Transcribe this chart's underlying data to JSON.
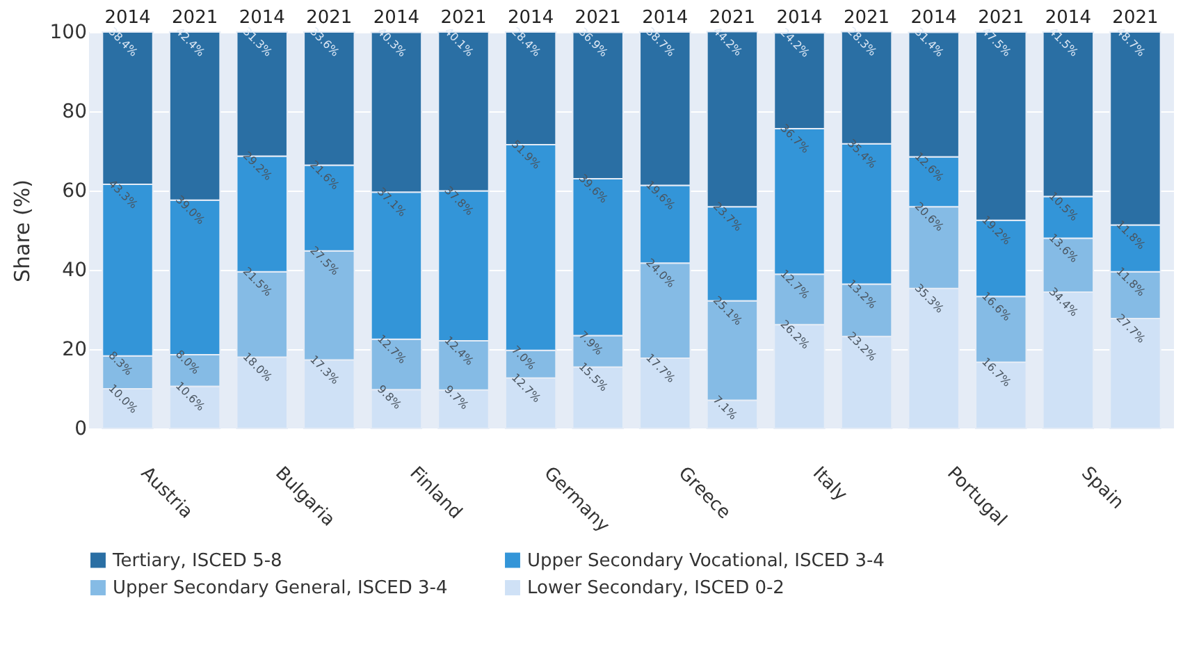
{
  "chart_data": {
    "type": "bar",
    "stacked": true,
    "ylabel": "Share (%)",
    "categories": [
      "2014",
      "2021",
      "2014",
      "2021",
      "2014",
      "2021",
      "2014",
      "2021",
      "2014",
      "2021",
      "2014",
      "2021",
      "2014",
      "2021",
      "2014",
      "2021"
    ],
    "annotations": [
      "Austria",
      "Bulgaria",
      "Finland",
      "Germany",
      "Greece",
      "Italy",
      "Portugal",
      "Spain"
    ],
    "series": [
      {
        "name": "Lower Secondary, ISCED 0-2",
        "color": "#cfe1f6",
        "values": [
          10.0,
          10.6,
          18.0,
          17.3,
          9.8,
          9.7,
          12.7,
          15.5,
          17.7,
          7.1,
          26.2,
          23.2,
          35.3,
          16.7,
          34.4,
          27.7
        ],
        "value_labels": [
          "10.0%",
          "10.6%",
          "18.0%",
          "17.3%",
          "9.8%",
          "9.7%",
          "12.7%",
          "15.5%",
          "17.7%",
          "7.1%",
          "26.2%",
          "23.2%",
          "35.3%",
          "16.7%",
          "34.4%",
          "27.7%"
        ]
      },
      {
        "name": "Upper Secondary General, ISCED 3-4",
        "color": "#85bbe5",
        "values": [
          8.3,
          8.0,
          21.5,
          27.5,
          12.7,
          12.4,
          7.0,
          7.9,
          24.0,
          25.1,
          12.7,
          13.2,
          20.6,
          16.6,
          13.6,
          11.8
        ],
        "value_labels": [
          "8.3%",
          "8.0%",
          "21.5%",
          "27.5%",
          "12.7%",
          "12.4%",
          "7.0%",
          "7.9%",
          "24.0%",
          "25.1%",
          "12.7%",
          "13.2%",
          "20.6%",
          "16.6%",
          "13.6%",
          "11.8%"
        ]
      },
      {
        "name": "Upper Secondary Vocational, ISCED 3-4",
        "color": "#3395d8",
        "values": [
          43.3,
          39.0,
          29.2,
          21.6,
          37.1,
          37.8,
          51.9,
          39.6,
          19.6,
          23.7,
          36.7,
          35.4,
          12.6,
          19.2,
          10.5,
          11.8
        ],
        "value_labels": [
          "43.3%",
          "39.0%",
          "29.2%",
          "21.6%",
          "37.1%",
          "37.8%",
          "51.9%",
          "39.6%",
          "19.6%",
          "23.7%",
          "36.7%",
          "35.4%",
          "12.6%",
          "19.2%",
          "10.5%",
          "11.8%"
        ]
      },
      {
        "name": "Tertiary, ISCED 5-8",
        "color": "#2a6fa4",
        "values": [
          38.4,
          42.4,
          31.3,
          33.6,
          40.3,
          40.1,
          28.4,
          36.9,
          38.7,
          44.2,
          24.2,
          28.3,
          31.4,
          47.5,
          41.5,
          48.7
        ],
        "value_labels": [
          "38.4%",
          "42.4%",
          "31.3%",
          "33.6%",
          "40.3%",
          "40.1%",
          "28.4%",
          "36.9%",
          "38.7%",
          "44.2%",
          "24.2%",
          "28.3%",
          "31.4%",
          "47.5%",
          "41.5%",
          "48.7%"
        ]
      }
    ],
    "ylim": [
      0,
      100
    ],
    "yticks": [
      0,
      20,
      40,
      60,
      80,
      100
    ],
    "grid": "y",
    "legend": "bottom"
  }
}
